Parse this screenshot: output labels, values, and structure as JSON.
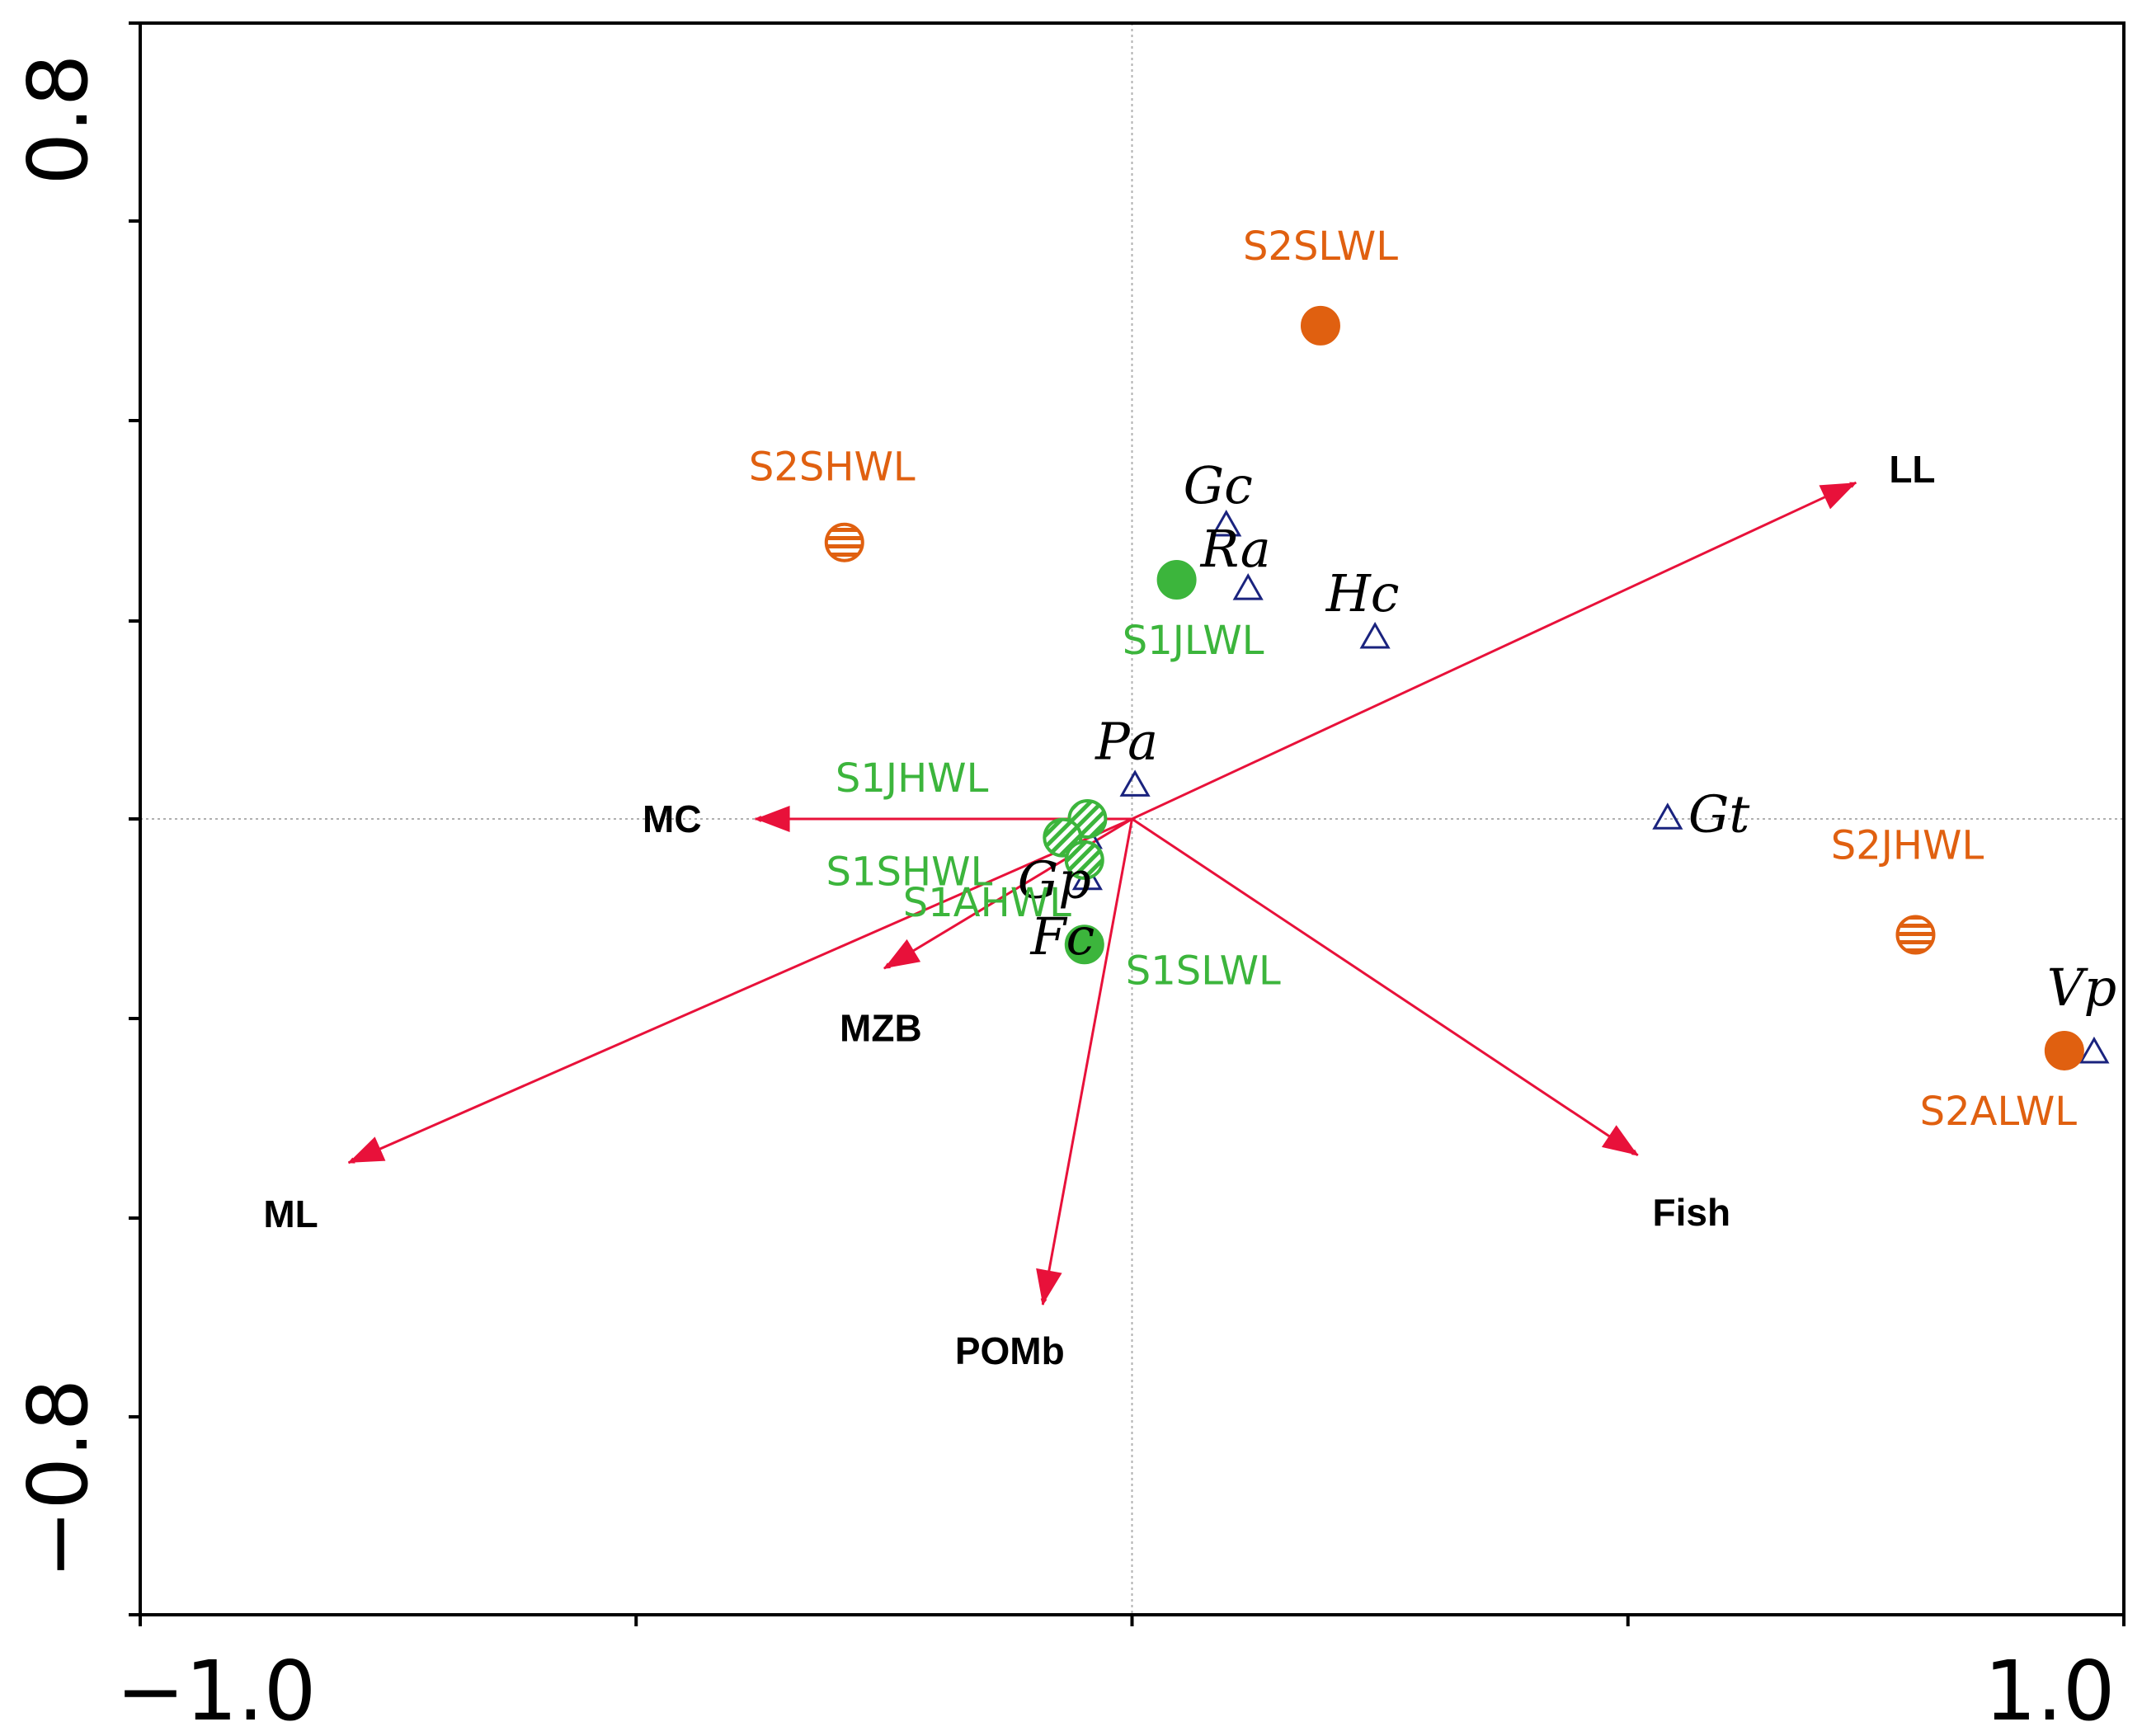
{
  "colors": {
    "arrow": "#e8113a",
    "group_s1": "#3cb53c",
    "group_s2": "#e06010",
    "species_marker": "#1a237e",
    "axis": "#000000",
    "zero_line": "#b0b0b0"
  },
  "chart_data": {
    "type": "scatter",
    "subtype": "ordination biplot",
    "xlim": [
      -1.0,
      1.0
    ],
    "ylim": [
      -0.8,
      0.8
    ],
    "x_tick_labels": [
      {
        "value": -1.0,
        "label": "−1.0"
      },
      {
        "value": 1.0,
        "label": "1.0"
      }
    ],
    "y_tick_labels": [
      {
        "value": 0.8,
        "label": "0.8"
      },
      {
        "value": -0.8,
        "label": "−0.8"
      }
    ],
    "x_minor_ticks": [
      -1.0,
      -0.5,
      0.0,
      0.5,
      1.0
    ],
    "y_minor_ticks": [
      -0.8,
      -0.6,
      -0.4,
      -0.2,
      0.0,
      0.2,
      0.4,
      0.6,
      0.8
    ],
    "zero_lines": true,
    "vectors": [
      {
        "label": "LL",
        "x": 0.73,
        "y": 0.45
      },
      {
        "label": "MC",
        "x": -0.38,
        "y": 0.0
      },
      {
        "label": "MZB",
        "x": -0.25,
        "y": -0.2
      },
      {
        "label": "ML",
        "x": -0.79,
        "y": -0.46
      },
      {
        "label": "POMb",
        "x": -0.09,
        "y": -0.65
      },
      {
        "label": "Fish",
        "x": 0.51,
        "y": -0.45
      }
    ],
    "sites": [
      {
        "label": "S2SLWL",
        "x": 0.19,
        "y": 0.66,
        "group": "S2",
        "marker": "filled"
      },
      {
        "label": "S2SHWL",
        "x": -0.29,
        "y": 0.37,
        "group": "S2",
        "marker": "hatched"
      },
      {
        "label": "S1JLWL",
        "x": 0.045,
        "y": 0.32,
        "group": "S1",
        "marker": "filled"
      },
      {
        "label": "S1JHWL",
        "x": -0.045,
        "y": 0.0,
        "group": "S1",
        "marker": "hatched"
      },
      {
        "label": "S1SHWL",
        "x": -0.07,
        "y": -0.025,
        "group": "S1",
        "marker": "hatched"
      },
      {
        "label": "S1AHWL",
        "x": -0.048,
        "y": -0.055,
        "group": "S1",
        "marker": "hatched"
      },
      {
        "label": "S1SLWL",
        "x": -0.048,
        "y": -0.168,
        "group": "S1",
        "marker": "filled"
      },
      {
        "label": "S2JHWL",
        "x": 0.79,
        "y": -0.155,
        "group": "S2",
        "marker": "hatched"
      },
      {
        "label": "S2ALWL",
        "x": 0.94,
        "y": -0.31,
        "group": "S2",
        "marker": "filled"
      }
    ],
    "species": [
      {
        "label": "Gc",
        "x": 0.095,
        "y": 0.395
      },
      {
        "label": "Ra",
        "x": 0.117,
        "y": 0.31
      },
      {
        "label": "Hc",
        "x": 0.245,
        "y": 0.245
      },
      {
        "label": "Pa",
        "x": 0.003,
        "y": 0.047
      },
      {
        "label": "Gt",
        "x": 0.54,
        "y": 0.003
      },
      {
        "label": "Gp",
        "x": -0.045,
        "y": -0.078
      },
      {
        "label": "Fc",
        "x": -0.045,
        "y": -0.023
      },
      {
        "label": "Vp",
        "x": 0.97,
        "y": -0.31
      }
    ]
  }
}
